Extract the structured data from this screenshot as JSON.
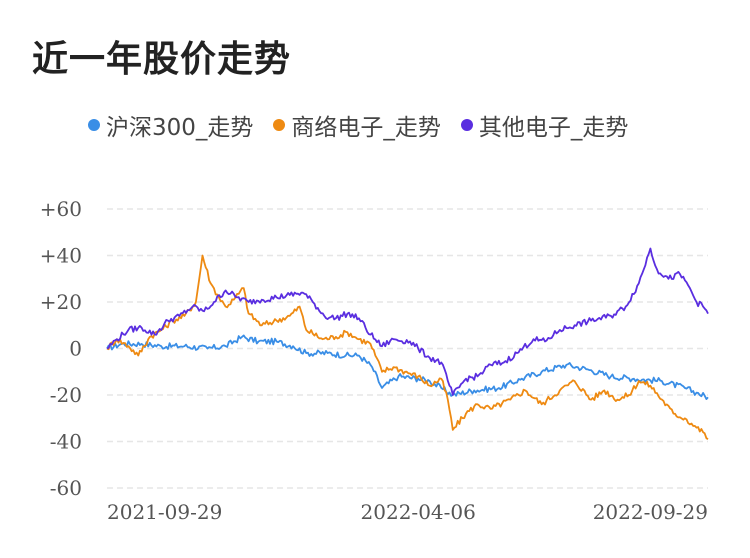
{
  "title": "近一年股价走势",
  "chart_data": {
    "type": "line",
    "y_ticks": [
      "+60",
      "+40",
      "+20",
      "0",
      "-20",
      "-40",
      "-60"
    ],
    "y_tick_values": [
      60,
      40,
      20,
      0,
      -20,
      -40,
      -60
    ],
    "ylim": [
      -60,
      60
    ],
    "x_ticks": [
      "2021-09-29",
      "2022-04-06",
      "2022-09-29"
    ],
    "x_range": [
      "2021-09-29",
      "2022-09-29"
    ],
    "grid": true,
    "legend_position": "top",
    "series": [
      {
        "name": "沪深300_走势",
        "color": "#3a8ee6",
        "points": [
          [
            "2021-09-29",
            0
          ],
          [
            "2021-10-08",
            2
          ],
          [
            "2021-10-20",
            2
          ],
          [
            "2021-11-01",
            1
          ],
          [
            "2021-11-15",
            1
          ],
          [
            "2021-11-29",
            0
          ],
          [
            "2021-12-10",
            1
          ],
          [
            "2021-12-20",
            5
          ],
          [
            "2021-12-30",
            3
          ],
          [
            "2022-01-10",
            3
          ],
          [
            "2022-01-20",
            1
          ],
          [
            "2022-01-28",
            -2
          ],
          [
            "2022-02-10",
            -2
          ],
          [
            "2022-02-21",
            -3
          ],
          [
            "2022-03-01",
            -3
          ],
          [
            "2022-03-09",
            -8
          ],
          [
            "2022-03-15",
            -17
          ],
          [
            "2022-03-25",
            -12
          ],
          [
            "2022-04-06",
            -13
          ],
          [
            "2022-04-13",
            -14
          ],
          [
            "2022-04-20",
            -17
          ],
          [
            "2022-04-27",
            -20
          ],
          [
            "2022-05-10",
            -18
          ],
          [
            "2022-05-25",
            -17
          ],
          [
            "2022-06-08",
            -13
          ],
          [
            "2022-06-20",
            -10
          ],
          [
            "2022-07-05",
            -7
          ],
          [
            "2022-07-18",
            -9
          ],
          [
            "2022-08-01",
            -12
          ],
          [
            "2022-08-15",
            -13
          ],
          [
            "2022-09-01",
            -14
          ],
          [
            "2022-09-15",
            -17
          ],
          [
            "2022-09-22",
            -19
          ],
          [
            "2022-09-29",
            -21
          ]
        ]
      },
      {
        "name": "商络电子_走势",
        "color": "#ee8a12",
        "points": [
          [
            "2021-09-29",
            0
          ],
          [
            "2021-10-05",
            4
          ],
          [
            "2021-10-12",
            1
          ],
          [
            "2021-10-18",
            -3
          ],
          [
            "2021-10-25",
            5
          ],
          [
            "2021-11-01",
            8
          ],
          [
            "2021-11-08",
            12
          ],
          [
            "2021-11-15",
            14
          ],
          [
            "2021-11-22",
            20
          ],
          [
            "2021-11-26",
            40
          ],
          [
            "2021-12-01",
            28
          ],
          [
            "2021-12-06",
            22
          ],
          [
            "2021-12-10",
            18
          ],
          [
            "2021-12-15",
            21
          ],
          [
            "2021-12-21",
            26
          ],
          [
            "2021-12-24",
            15
          ],
          [
            "2022-01-01",
            10
          ],
          [
            "2022-01-10",
            12
          ],
          [
            "2022-01-18",
            14
          ],
          [
            "2022-01-24",
            18
          ],
          [
            "2022-01-28",
            8
          ],
          [
            "2022-02-07",
            4
          ],
          [
            "2022-02-15",
            5
          ],
          [
            "2022-02-22",
            7
          ],
          [
            "2022-03-01",
            4
          ],
          [
            "2022-03-08",
            2
          ],
          [
            "2022-03-15",
            -10
          ],
          [
            "2022-03-22",
            -8
          ],
          [
            "2022-03-29",
            -10
          ],
          [
            "2022-04-06",
            -12
          ],
          [
            "2022-04-13",
            -16
          ],
          [
            "2022-04-20",
            -13
          ],
          [
            "2022-04-24",
            -22
          ],
          [
            "2022-04-27",
            -35
          ],
          [
            "2022-05-05",
            -28
          ],
          [
            "2022-05-12",
            -24
          ],
          [
            "2022-05-20",
            -26
          ],
          [
            "2022-06-01",
            -22
          ],
          [
            "2022-06-10",
            -18
          ],
          [
            "2022-06-20",
            -24
          ],
          [
            "2022-07-01",
            -18
          ],
          [
            "2022-07-10",
            -14
          ],
          [
            "2022-07-20",
            -22
          ],
          [
            "2022-07-28",
            -18
          ],
          [
            "2022-08-05",
            -22
          ],
          [
            "2022-08-12",
            -20
          ],
          [
            "2022-08-18",
            -14
          ],
          [
            "2022-08-25",
            -16
          ],
          [
            "2022-09-01",
            -22
          ],
          [
            "2022-09-08",
            -28
          ],
          [
            "2022-09-15",
            -30
          ],
          [
            "2022-09-22",
            -34
          ],
          [
            "2022-09-26",
            -36
          ],
          [
            "2022-09-29",
            -39
          ]
        ]
      },
      {
        "name": "其他电子_走势",
        "color": "#5a2ee0",
        "points": [
          [
            "2021-09-29",
            0
          ],
          [
            "2021-10-05",
            4
          ],
          [
            "2021-10-12",
            8
          ],
          [
            "2021-10-20",
            9
          ],
          [
            "2021-10-28",
            6
          ],
          [
            "2021-11-05",
            12
          ],
          [
            "2021-11-12",
            14
          ],
          [
            "2021-11-20",
            18
          ],
          [
            "2021-11-27",
            16
          ],
          [
            "2021-12-03",
            20
          ],
          [
            "2021-12-10",
            25
          ],
          [
            "2021-12-17",
            22
          ],
          [
            "2021-12-24",
            20
          ],
          [
            "2022-01-01",
            21
          ],
          [
            "2022-01-10",
            22
          ],
          [
            "2022-01-18",
            23
          ],
          [
            "2022-01-26",
            24
          ],
          [
            "2022-02-01",
            20
          ],
          [
            "2022-02-08",
            14
          ],
          [
            "2022-02-15",
            13
          ],
          [
            "2022-02-22",
            15
          ],
          [
            "2022-03-01",
            13
          ],
          [
            "2022-03-08",
            6
          ],
          [
            "2022-03-15",
            1
          ],
          [
            "2022-03-22",
            4
          ],
          [
            "2022-04-01",
            3
          ],
          [
            "2022-04-06",
            0
          ],
          [
            "2022-04-13",
            -4
          ],
          [
            "2022-04-20",
            -6
          ],
          [
            "2022-04-27",
            -20
          ],
          [
            "2022-05-05",
            -13
          ],
          [
            "2022-05-12",
            -12
          ],
          [
            "2022-05-20",
            -7
          ],
          [
            "2022-05-28",
            -6
          ],
          [
            "2022-06-05",
            -2
          ],
          [
            "2022-06-15",
            4
          ],
          [
            "2022-06-22",
            3
          ],
          [
            "2022-07-01",
            8
          ],
          [
            "2022-07-10",
            10
          ],
          [
            "2022-07-20",
            12
          ],
          [
            "2022-08-01",
            14
          ],
          [
            "2022-08-10",
            18
          ],
          [
            "2022-08-18",
            28
          ],
          [
            "2022-08-25",
            43
          ],
          [
            "2022-08-29",
            34
          ],
          [
            "2022-09-05",
            30
          ],
          [
            "2022-09-12",
            32
          ],
          [
            "2022-09-18",
            26
          ],
          [
            "2022-09-22",
            20
          ],
          [
            "2022-09-26",
            18
          ],
          [
            "2022-09-29",
            15
          ]
        ]
      }
    ]
  }
}
